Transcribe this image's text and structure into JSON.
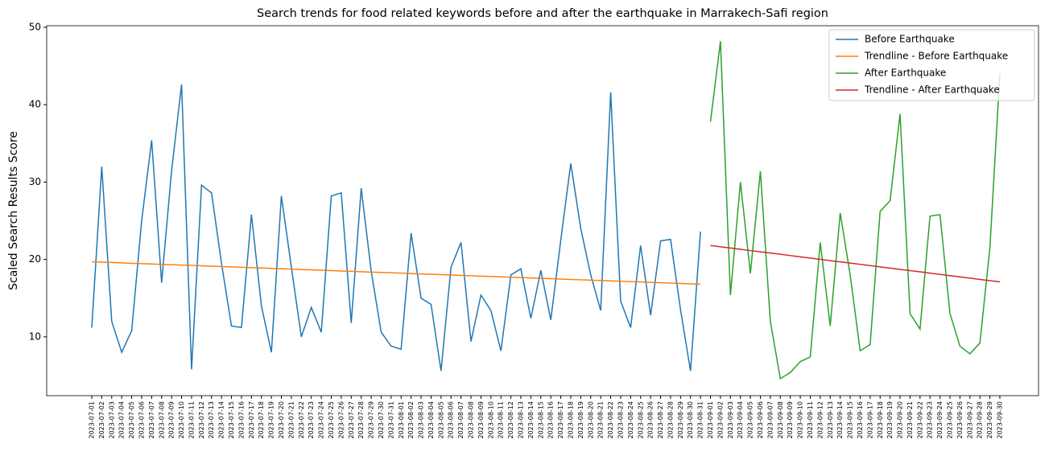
{
  "chart_data": {
    "type": "line",
    "title": "Search trends for food related keywords before and after the earthquake in Marrakech-Safi region",
    "ylabel": "Scaled Search Results Score",
    "categories": [
      "2023-07-01",
      "2023-07-02",
      "2023-07-03",
      "2023-07-04",
      "2023-07-05",
      "2023-07-06",
      "2023-07-07",
      "2023-07-08",
      "2023-07-09",
      "2023-07-10",
      "2023-07-11",
      "2023-07-12",
      "2023-07-13",
      "2023-07-14",
      "2023-07-15",
      "2023-07-16",
      "2023-07-17",
      "2023-07-18",
      "2023-07-19",
      "2023-07-20",
      "2023-07-21",
      "2023-07-22",
      "2023-07-23",
      "2023-07-24",
      "2023-07-25",
      "2023-07-26",
      "2023-07-27",
      "2023-07-28",
      "2023-07-29",
      "2023-07-30",
      "2023-07-31",
      "2023-08-01",
      "2023-08-02",
      "2023-08-03",
      "2023-08-04",
      "2023-08-05",
      "2023-08-06",
      "2023-08-07",
      "2023-08-08",
      "2023-08-09",
      "2023-08-10",
      "2023-08-11",
      "2023-08-12",
      "2023-08-13",
      "2023-08-14",
      "2023-08-15",
      "2023-08-16",
      "2023-08-17",
      "2023-08-18",
      "2023-08-19",
      "2023-08-20",
      "2023-08-21",
      "2023-08-22",
      "2023-08-23",
      "2023-08-24",
      "2023-08-25",
      "2023-08-26",
      "2023-08-27",
      "2023-08-28",
      "2023-08-29",
      "2023-08-30",
      "2023-08-31",
      "2023-09-01",
      "2023-09-02",
      "2023-09-03",
      "2023-09-04",
      "2023-09-05",
      "2023-09-06",
      "2023-09-07",
      "2023-09-08",
      "2023-09-09",
      "2023-09-10",
      "2023-09-11",
      "2023-09-12",
      "2023-09-13",
      "2023-09-14",
      "2023-09-15",
      "2023-09-16",
      "2023-09-17",
      "2023-09-18",
      "2023-09-19",
      "2023-09-20",
      "2023-09-21",
      "2023-09-22",
      "2023-09-23",
      "2023-09-24",
      "2023-09-25",
      "2023-09-26",
      "2023-09-27",
      "2023-09-28",
      "2023-09-29",
      "2023-09-30"
    ],
    "series": [
      {
        "name": "Before Earthquake",
        "color": "#1f77b4",
        "values": [
          11.2,
          32,
          12,
          8,
          10.8,
          25,
          35.4,
          17,
          31.5,
          42.6,
          5.8,
          29.6,
          28.6,
          19.5,
          11.4,
          11.2,
          25.8,
          14,
          8,
          28.2,
          19,
          10,
          13.8,
          10.6,
          28.2,
          28.6,
          11.8,
          29.2,
          18.5,
          10.6,
          8.8,
          8.4,
          23.4,
          15,
          14.2,
          5.6,
          19,
          22.2,
          9.4,
          15.4,
          13.4,
          8.2,
          18,
          18.8,
          12.4,
          18.6,
          12.2,
          22.5,
          32.4,
          24,
          18,
          13.4,
          41.6,
          14.6,
          11.2,
          21.8,
          12.8,
          22.4,
          22.6,
          13.5,
          5.6,
          23.6,
          null,
          null,
          null,
          null,
          null,
          null,
          null,
          null,
          null,
          null,
          null,
          null,
          null,
          null,
          null,
          null,
          null,
          null,
          null,
          null,
          null,
          null,
          null,
          null,
          null,
          null,
          null,
          null,
          null,
          null
        ]
      },
      {
        "name": "Trendline - Before Earthquake",
        "color": "#ff7f0e",
        "values": [
          19.7,
          19.65,
          19.61,
          19.56,
          19.51,
          19.46,
          19.42,
          19.37,
          19.32,
          19.27,
          19.23,
          19.18,
          19.13,
          19.08,
          19.04,
          18.99,
          18.94,
          18.89,
          18.85,
          18.8,
          18.75,
          18.7,
          18.66,
          18.61,
          18.56,
          18.51,
          18.47,
          18.42,
          18.37,
          18.32,
          18.28,
          18.23,
          18.18,
          18.13,
          18.09,
          18.04,
          17.99,
          17.94,
          17.9,
          17.85,
          17.8,
          17.75,
          17.71,
          17.66,
          17.61,
          17.56,
          17.52,
          17.47,
          17.42,
          17.37,
          17.33,
          17.28,
          17.23,
          17.18,
          17.14,
          17.09,
          17.04,
          16.99,
          16.95,
          16.9,
          16.85,
          16.8,
          null,
          null,
          null,
          null,
          null,
          null,
          null,
          null,
          null,
          null,
          null,
          null,
          null,
          null,
          null,
          null,
          null,
          null,
          null,
          null,
          null,
          null,
          null,
          null,
          null,
          null,
          null,
          null,
          null,
          null
        ]
      },
      {
        "name": "After Earthquake",
        "color": "#2ca02c",
        "values": [
          null,
          null,
          null,
          null,
          null,
          null,
          null,
          null,
          null,
          null,
          null,
          null,
          null,
          null,
          null,
          null,
          null,
          null,
          null,
          null,
          null,
          null,
          null,
          null,
          null,
          null,
          null,
          null,
          null,
          null,
          null,
          null,
          null,
          null,
          null,
          null,
          null,
          null,
          null,
          null,
          null,
          null,
          null,
          null,
          null,
          null,
          null,
          null,
          null,
          null,
          null,
          null,
          null,
          null,
          null,
          null,
          null,
          null,
          null,
          null,
          null,
          null,
          37.8,
          48.2,
          15.4,
          30,
          18.2,
          31.4,
          12,
          4.6,
          5.4,
          6.8,
          7.4,
          22.2,
          11.4,
          26,
          18,
          8.2,
          9,
          26.2,
          27.6,
          38.8,
          13,
          11,
          25.6,
          25.8,
          13,
          8.8,
          7.8,
          9.2,
          21.5,
          44
        ]
      },
      {
        "name": "Trendline - After Earthquake",
        "color": "#d62728",
        "values": [
          null,
          null,
          null,
          null,
          null,
          null,
          null,
          null,
          null,
          null,
          null,
          null,
          null,
          null,
          null,
          null,
          null,
          null,
          null,
          null,
          null,
          null,
          null,
          null,
          null,
          null,
          null,
          null,
          null,
          null,
          null,
          null,
          null,
          null,
          null,
          null,
          null,
          null,
          null,
          null,
          null,
          null,
          null,
          null,
          null,
          null,
          null,
          null,
          null,
          null,
          null,
          null,
          null,
          null,
          null,
          null,
          null,
          null,
          null,
          null,
          null,
          null,
          21.8,
          21.64,
          21.48,
          21.31,
          21.15,
          20.99,
          20.83,
          20.67,
          20.5,
          20.34,
          20.18,
          20.02,
          19.85,
          19.69,
          19.53,
          19.37,
          19.21,
          19.04,
          18.88,
          18.72,
          18.56,
          18.4,
          18.23,
          18.07,
          17.91,
          17.75,
          17.58,
          17.42,
          17.26,
          17.1
        ]
      }
    ],
    "ylim": [
      2.4,
      50.2
    ],
    "yticks": [
      10,
      20,
      30,
      40,
      50
    ],
    "legend": "upper right",
    "grid": false
  }
}
